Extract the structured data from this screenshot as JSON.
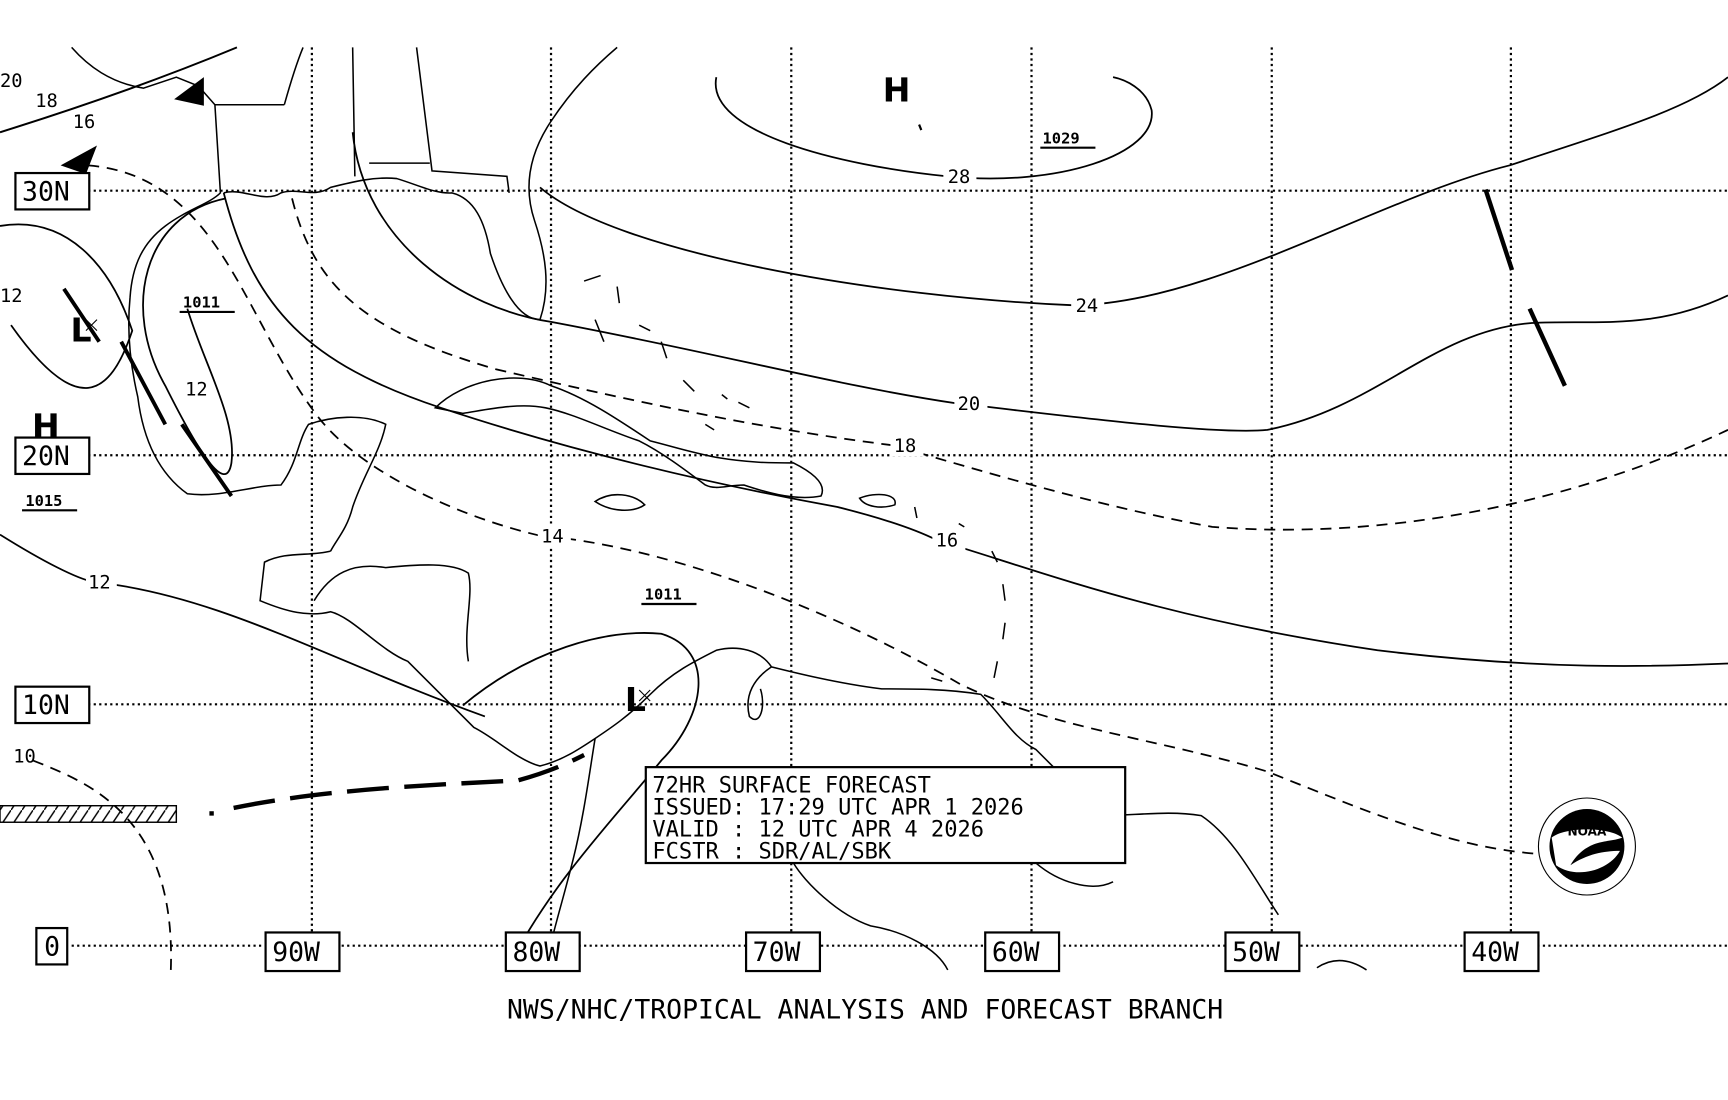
{
  "map": {
    "latitude_labels": [
      "30N",
      "20N",
      "10N",
      "0"
    ],
    "longitude_labels": [
      "90W",
      "80W",
      "70W",
      "60W",
      "50W",
      "40W"
    ],
    "isobar_labels": [
      "20",
      "18",
      "16",
      "12",
      "12",
      "12",
      "10",
      "28",
      "24",
      "20",
      "18",
      "16",
      "14"
    ],
    "pressure_systems": [
      {
        "type": "H",
        "pressure": "1029"
      },
      {
        "type": "H",
        "pressure": "1015"
      },
      {
        "type": "L",
        "pressure": "1011"
      },
      {
        "type": "L",
        "pressure": "1011"
      }
    ]
  },
  "info_box": {
    "line1": "72HR SURFACE FORECAST",
    "line2": "ISSUED: 17:29 UTC APR 1 2026",
    "line3": "VALID : 12 UTC APR 4 2026",
    "line4": "FCSTR : SDR/AL/SBK"
  },
  "footer": "NWS/NHC/TROPICAL ANALYSIS AND FORECAST BRANCH",
  "logo": {
    "text": "NOAA",
    "ring_text": "NATIONAL OCEANIC AND ATMOSPHERIC ADMINISTRATION U.S. DEPARTMENT OF COMMERCE"
  },
  "colors": {
    "foreground": "#000000",
    "background": "#ffffff"
  }
}
